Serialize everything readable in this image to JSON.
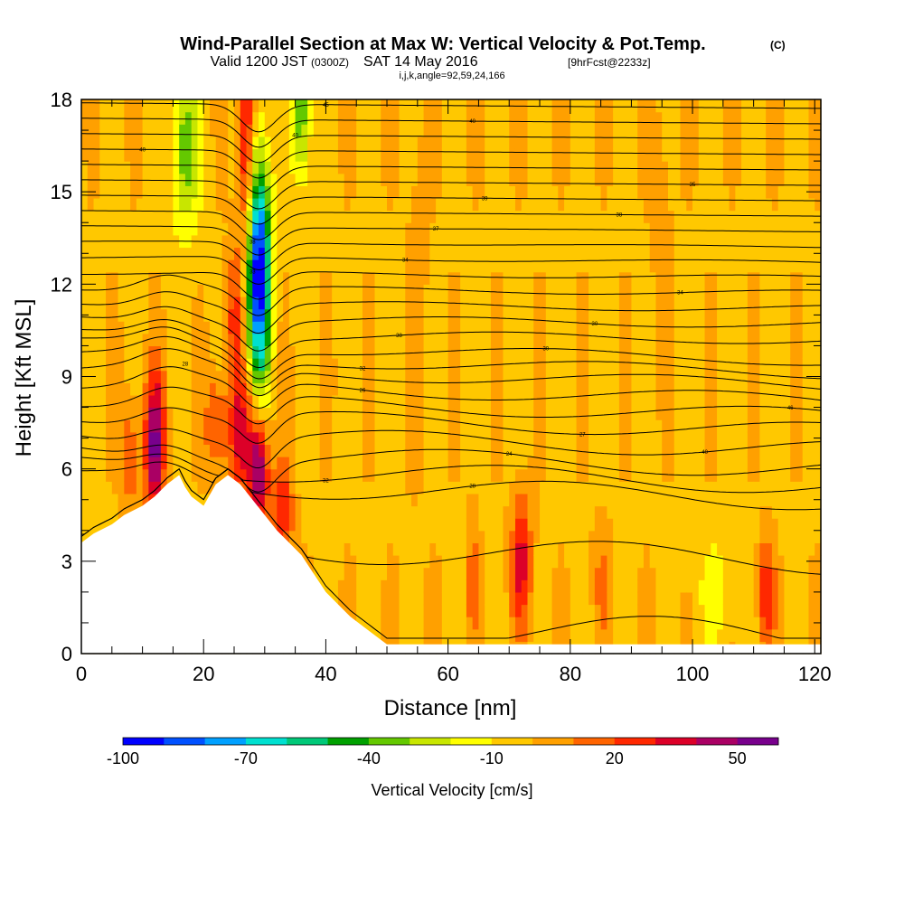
{
  "header": {
    "title": "Wind-Parallel Section at Max W: Vertical Velocity & Pot.Temp.",
    "title_mark": "(C)",
    "valid_prefix": "Valid 1200 JST",
    "valid_utc": "(0300Z)",
    "valid_date": "SAT 14 May 2016",
    "forecast": "[9hrFcst@2233z]",
    "indices": "i,j,k,angle=92,59,24,166"
  },
  "chart_data": {
    "type": "heatmap",
    "xlabel": "Distance [nm]",
    "ylabel": "Height [Kft MSL]",
    "xlim": [
      0,
      121
    ],
    "ylim": [
      0,
      18
    ],
    "x_ticks": [
      0,
      20,
      40,
      60,
      80,
      100,
      120
    ],
    "y_ticks": [
      0,
      3,
      6,
      9,
      12,
      15,
      18
    ],
    "x_minor_step": 5,
    "y_minor_step": 1,
    "colorbar": {
      "title": "Vertical Velocity [cm/s]",
      "min": -100,
      "max": 60,
      "step": 10,
      "tick_labels": [
        -100,
        -70,
        -40,
        -10,
        20,
        50
      ],
      "colors": [
        "#0000ff",
        "#0050ff",
        "#00a0ff",
        "#00e0d0",
        "#00c878",
        "#00a000",
        "#64c800",
        "#c8e600",
        "#ffff00",
        "#ffc800",
        "#ffa000",
        "#ff6400",
        "#ff2800",
        "#dc0028",
        "#aa0064",
        "#78008c"
      ]
    },
    "terrain_kft": [
      [
        0,
        3.6
      ],
      [
        2,
        3.9
      ],
      [
        5,
        4.2
      ],
      [
        7,
        4.5
      ],
      [
        10,
        4.8
      ],
      [
        12,
        5.1
      ],
      [
        14,
        5.5
      ],
      [
        16,
        5.8
      ],
      [
        17,
        5.4
      ],
      [
        18,
        5.1
      ],
      [
        20,
        4.8
      ],
      [
        22,
        5.5
      ],
      [
        24,
        5.8
      ],
      [
        26,
        5.5
      ],
      [
        28,
        5.0
      ],
      [
        30,
        4.5
      ],
      [
        32,
        4.0
      ],
      [
        34,
        3.6
      ],
      [
        36,
        3.2
      ],
      [
        38,
        2.6
      ],
      [
        40,
        2.0
      ],
      [
        42,
        1.6
      ],
      [
        44,
        1.2
      ],
      [
        46,
        0.9
      ],
      [
        48,
        0.6
      ],
      [
        50,
        0.3
      ],
      [
        121,
        0.3
      ]
    ],
    "w_features": [
      {
        "x": 12,
        "z": 6.8,
        "sx": 1.2,
        "sz": 1.6,
        "w": 55
      },
      {
        "x": 29,
        "z": 6.0,
        "sx": 1.2,
        "sz": 1.4,
        "w": 55
      },
      {
        "x": 26,
        "z": 7.2,
        "sx": 1.4,
        "sz": 1.4,
        "w": 35
      },
      {
        "x": 22,
        "z": 7.5,
        "sx": 1.2,
        "sz": 1.2,
        "w": 25
      },
      {
        "x": 8,
        "z": 6.5,
        "sx": 1.0,
        "sz": 1.5,
        "w": 20
      },
      {
        "x": 29,
        "z": 12.5,
        "sx": 1.3,
        "sz": 2.6,
        "w": -100
      },
      {
        "x": 36,
        "z": 17.5,
        "sx": 1.0,
        "sz": 1.5,
        "w": -40
      },
      {
        "x": 17,
        "z": 16.5,
        "sx": 1.6,
        "sz": 2.0,
        "w": -35
      },
      {
        "x": 27,
        "z": 16.5,
        "sx": 1.0,
        "sz": 2.5,
        "w": 40
      },
      {
        "x": 25,
        "z": 11.0,
        "sx": 1.0,
        "sz": 1.5,
        "w": 25
      },
      {
        "x": 33,
        "z": 4.5,
        "sx": 1.2,
        "sz": 1.2,
        "w": 30
      },
      {
        "x": 72,
        "z": 3.0,
        "sx": 1.2,
        "sz": 1.5,
        "w": 35
      },
      {
        "x": 112,
        "z": 2.0,
        "sx": 1.0,
        "sz": 1.2,
        "w": 30
      },
      {
        "x": 64,
        "z": 2.5,
        "sx": 0.8,
        "sz": 1.5,
        "w": 15
      },
      {
        "x": 85,
        "z": 2.5,
        "sx": 1.0,
        "sz": 1.5,
        "w": 12
      },
      {
        "x": 55,
        "z": 12,
        "sx": 1.2,
        "sz": 4,
        "w": 8
      },
      {
        "x": 95,
        "z": 14,
        "sx": 1.2,
        "sz": 3,
        "w": 8
      },
      {
        "x": 104,
        "z": 2.0,
        "sx": 2.5,
        "sz": 1.3,
        "w": -12
      }
    ],
    "theta_contours": [
      {
        "z0": 0.8,
        "label": ""
      },
      {
        "z0": 3.3,
        "label": "30"
      },
      {
        "z0": 5.3,
        "label": "28"
      },
      {
        "z0": 5.8,
        "label": "32"
      },
      {
        "z0": 6.3,
        "label": "24"
      },
      {
        "z0": 6.9,
        "label": "40"
      },
      {
        "z0": 7.5,
        "label": "27"
      },
      {
        "z0": 8.0,
        "label": "46"
      },
      {
        "z0": 8.5,
        "label": "26"
      },
      {
        "z0": 9.0,
        "label": "28"
      },
      {
        "z0": 9.4,
        "label": "32"
      },
      {
        "z0": 9.8,
        "label": "30"
      },
      {
        "z0": 10.3,
        "label": "38"
      },
      {
        "z0": 10.8,
        "label": "30"
      },
      {
        "z0": 11.3,
        "label": "33"
      },
      {
        "z0": 11.8,
        "label": "34"
      },
      {
        "z0": 12.3,
        "label": "33"
      },
      {
        "z0": 12.8,
        "label": "34"
      },
      {
        "z0": 13.3,
        "label": "38"
      },
      {
        "z0": 13.8,
        "label": "37"
      },
      {
        "z0": 14.3,
        "label": "38"
      },
      {
        "z0": 14.8,
        "label": "39"
      },
      {
        "z0": 15.3,
        "label": "35"
      },
      {
        "z0": 15.8,
        "label": "40"
      },
      {
        "z0": 16.3,
        "label": "40"
      },
      {
        "z0": 16.8,
        "label": "40"
      },
      {
        "z0": 17.3,
        "label": "40"
      },
      {
        "z0": 17.8,
        "label": "45"
      }
    ]
  }
}
